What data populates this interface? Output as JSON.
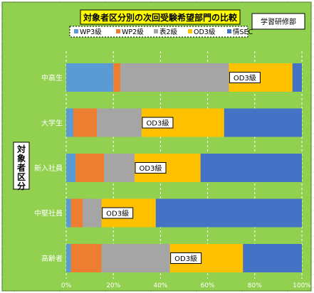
{
  "chart_data": {
    "type": "bar",
    "stacked": "percent",
    "orientation": "horizontal",
    "title": "対象者区分別の次回受験希望部門の比較",
    "organization": "学習研修部",
    "ylabel": "対象者区分",
    "xlabel": "",
    "xlim": [
      0,
      100
    ],
    "xticks": [
      "0%",
      "20%",
      "40%",
      "60%",
      "80%",
      "100%"
    ],
    "grid": true,
    "legend_position": "top",
    "categories": [
      "中高生",
      "大学生",
      "新入社員",
      "中堅社員",
      "高齢者"
    ],
    "series": [
      {
        "name": "WP3級",
        "color": "#5b9bd5",
        "values": [
          20,
          3,
          4,
          2,
          2
        ]
      },
      {
        "name": "WP2級",
        "color": "#ed7d31",
        "values": [
          3,
          10,
          12,
          5,
          13
        ]
      },
      {
        "name": "表2級",
        "color": "#a5a5a5",
        "values": [
          46,
          19,
          13,
          8,
          29
        ]
      },
      {
        "name": "OD3級",
        "color": "#ffc000",
        "values": [
          27,
          35,
          28,
          23,
          31
        ]
      },
      {
        "name": "情SEC",
        "color": "#4472c4",
        "values": [
          4,
          33,
          43,
          62,
          25
        ]
      }
    ],
    "data_labels": [
      {
        "category": "中高生",
        "series": "OD3級",
        "text": "OD3級"
      },
      {
        "category": "大学生",
        "series": "OD3級",
        "text": "OD3級"
      },
      {
        "category": "新入社員",
        "series": "OD3級",
        "text": "OD3級"
      },
      {
        "category": "中堅社員",
        "series": "OD3級",
        "text": "OD3級"
      },
      {
        "category": "高齢者",
        "series": "OD3級",
        "text": "OD3級"
      }
    ]
  }
}
